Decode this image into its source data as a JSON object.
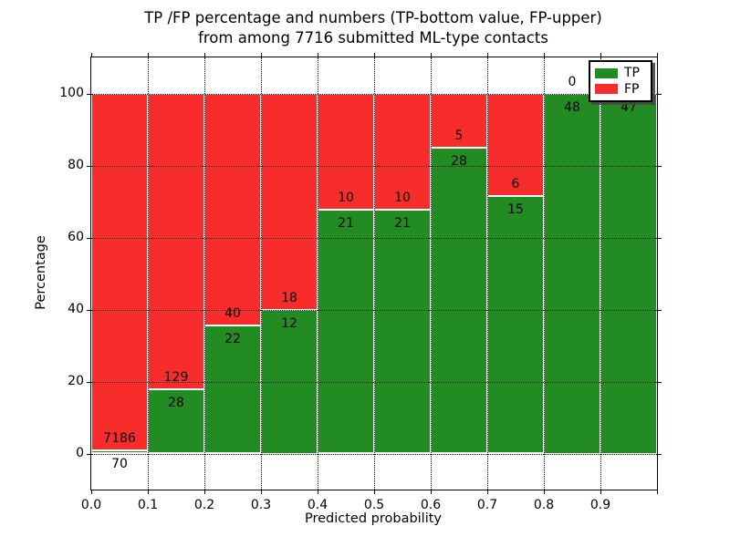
{
  "title": {
    "line1": "TP /FP percentage and numbers (TP-bottom value, FP-upper)",
    "line2": "from among 7716 submitted ML-type contacts"
  },
  "colors": {
    "tp_green": "#228b22",
    "fp_red": "#f92c2c",
    "background": "#ffffff",
    "text": "#000000",
    "frame": "#000000"
  },
  "chart_data": {
    "type": "bar",
    "stacked": true,
    "normalized": "percentage",
    "title": "TP /FP percentage and numbers (TP-bottom value, FP-upper) from among 7716 submitted ML-type contacts",
    "xlabel": "Predicted probability",
    "ylabel": "Percentage",
    "xlim": [
      0.0,
      1.0
    ],
    "ylim": [
      -10,
      110
    ],
    "x_tick_labels": [
      "0.0",
      "0.1",
      "0.2",
      "0.3",
      "0.4",
      "0.5",
      "0.6",
      "0.7",
      "0.8",
      "0.9"
    ],
    "y_tick_values": [
      0,
      20,
      40,
      60,
      80,
      100
    ],
    "grid": true,
    "grid_style": "dotted",
    "total_contacts": 7716,
    "legend": {
      "position": "upper right",
      "entries": [
        {
          "label": "TP",
          "color": "#228b22"
        },
        {
          "label": "FP",
          "color": "#f92c2c"
        }
      ]
    },
    "series": [
      {
        "name": "TP",
        "color": "#228b22",
        "values": [
          70,
          28,
          22,
          12,
          21,
          21,
          28,
          15,
          48,
          47
        ]
      },
      {
        "name": "FP",
        "color": "#f92c2c",
        "values": [
          7186,
          129,
          40,
          18,
          10,
          10,
          5,
          6,
          0,
          0
        ]
      }
    ],
    "bins": [
      {
        "range": "0.0-0.1",
        "x_start": 0.0,
        "x_end": 0.1,
        "tp": 70,
        "fp": 7186,
        "tp_label": "70",
        "fp_label": "7186",
        "fp_label_visible": true
      },
      {
        "range": "0.1-0.2",
        "x_start": 0.1,
        "x_end": 0.2,
        "tp": 28,
        "fp": 129,
        "tp_label": "28",
        "fp_label": "129",
        "fp_label_visible": true
      },
      {
        "range": "0.2-0.3",
        "x_start": 0.2,
        "x_end": 0.3,
        "tp": 22,
        "fp": 40,
        "tp_label": "22",
        "fp_label": "40",
        "fp_label_visible": true
      },
      {
        "range": "0.3-0.4",
        "x_start": 0.3,
        "x_end": 0.4,
        "tp": 12,
        "fp": 18,
        "tp_label": "12",
        "fp_label": "18",
        "fp_label_visible": true
      },
      {
        "range": "0.4-0.5",
        "x_start": 0.4,
        "x_end": 0.5,
        "tp": 21,
        "fp": 10,
        "tp_label": "21",
        "fp_label": "10",
        "fp_label_visible": true
      },
      {
        "range": "0.5-0.6",
        "x_start": 0.5,
        "x_end": 0.6,
        "tp": 21,
        "fp": 10,
        "tp_label": "21",
        "fp_label": "10",
        "fp_label_visible": true
      },
      {
        "range": "0.6-0.7",
        "x_start": 0.6,
        "x_end": 0.7,
        "tp": 28,
        "fp": 5,
        "tp_label": "28",
        "fp_label": "5",
        "fp_label_visible": true
      },
      {
        "range": "0.7-0.8",
        "x_start": 0.7,
        "x_end": 0.8,
        "tp": 15,
        "fp": 6,
        "tp_label": "15",
        "fp_label": "6",
        "fp_label_visible": true
      },
      {
        "range": "0.8-0.9",
        "x_start": 0.8,
        "x_end": 0.9,
        "tp": 48,
        "fp": 0,
        "tp_label": "48",
        "fp_label": "0",
        "fp_label_visible": true
      },
      {
        "range": "0.9-1.0",
        "x_start": 0.9,
        "x_end": 1.0,
        "tp": 47,
        "fp": 0,
        "tp_label": "47",
        "fp_label": "",
        "fp_label_visible": false
      }
    ]
  }
}
